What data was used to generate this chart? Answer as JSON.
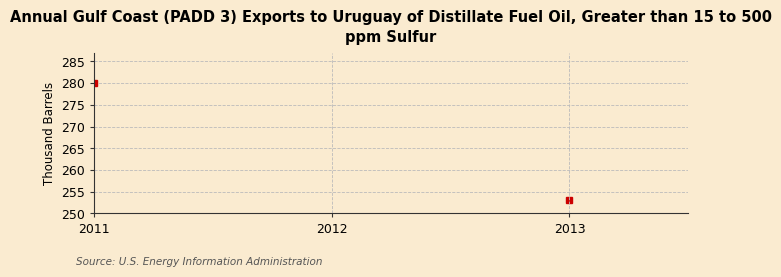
{
  "title": "Annual Gulf Coast (PADD 3) Exports to Uruguay of Distillate Fuel Oil, Greater than 15 to 500\nppm Sulfur",
  "ylabel": "Thousand Barrels",
  "source": "Source: U.S. Energy Information Administration",
  "x_data": [
    2011,
    2013
  ],
  "y_data": [
    280,
    253
  ],
  "xlim": [
    2011,
    2013.5
  ],
  "ylim": [
    250,
    287
  ],
  "yticks": [
    250,
    255,
    260,
    265,
    270,
    275,
    280,
    285
  ],
  "xticks": [
    2011,
    2012,
    2013
  ],
  "marker_color": "#cc0000",
  "marker": "s",
  "marker_size": 4,
  "grid_color": "#bbbbbb",
  "bg_color": "#faebd0",
  "title_fontsize": 10.5,
  "label_fontsize": 8.5,
  "tick_fontsize": 9,
  "source_fontsize": 7.5
}
